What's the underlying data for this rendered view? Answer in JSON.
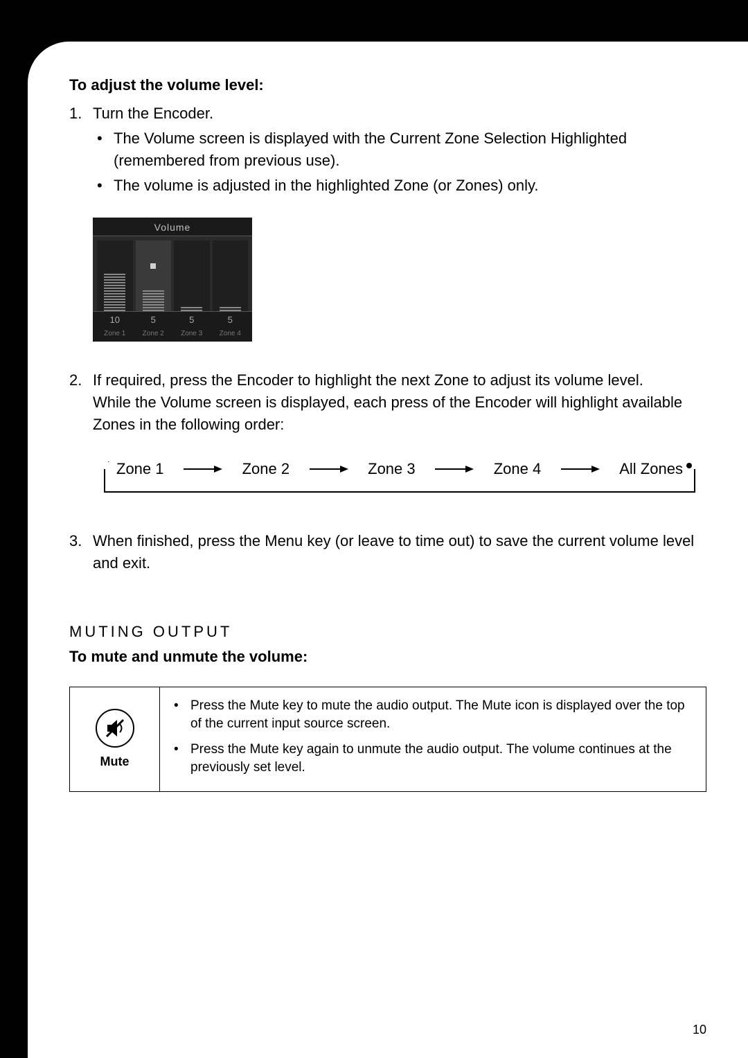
{
  "heading1": "To adjust the volume level:",
  "step1": {
    "text": "Turn the Encoder.",
    "bullets": [
      "The Volume screen is displayed with the Current Zone Selection Highlighted (remembered from previous use).",
      "The volume is adjusted in the highlighted Zone (or Zones) only."
    ]
  },
  "volume_screen": {
    "title": "Volume",
    "bars": [
      {
        "height_pct": 55,
        "highlighted": false,
        "value": "10",
        "label": "Zone 1"
      },
      {
        "height_pct": 30,
        "highlighted": true,
        "value": "5",
        "label": "Zone 2",
        "show_dot": true,
        "dot_pct": 60
      },
      {
        "height_pct": 8,
        "highlighted": false,
        "value": "5",
        "label": "Zone 3"
      },
      {
        "height_pct": 8,
        "highlighted": false,
        "value": "5",
        "label": "Zone 4"
      }
    ],
    "background_color": "#1a1a1a",
    "bar_area_bg": "#2a2a2a",
    "text_color": "#c0c0c0",
    "label_color": "#777777"
  },
  "step2": {
    "line1": "If required, press the Encoder to highlight the next Zone to adjust its volume level.",
    "line2": "While the Volume screen is displayed, each press of the Encoder will highlight available Zones in the following order:"
  },
  "zone_flow": {
    "nodes": [
      "Zone 1",
      "Zone 2",
      "Zone 3",
      "Zone 4",
      "All Zones"
    ],
    "arrow_color": "#000000"
  },
  "step3": "When finished, press the Menu key (or leave to time out) to save the current volume level and exit.",
  "section_muting": "MUTING OUTPUT",
  "heading_mute": "To mute and unmute the volume:",
  "mute_box": {
    "label": "Mute",
    "bullets": [
      "Press the Mute key to mute the audio output. The Mute icon is displayed over the top of the current input source screen.",
      "Press the Mute key again to unmute the audio output. The volume continues at the previously set level."
    ]
  },
  "page_number": "10"
}
